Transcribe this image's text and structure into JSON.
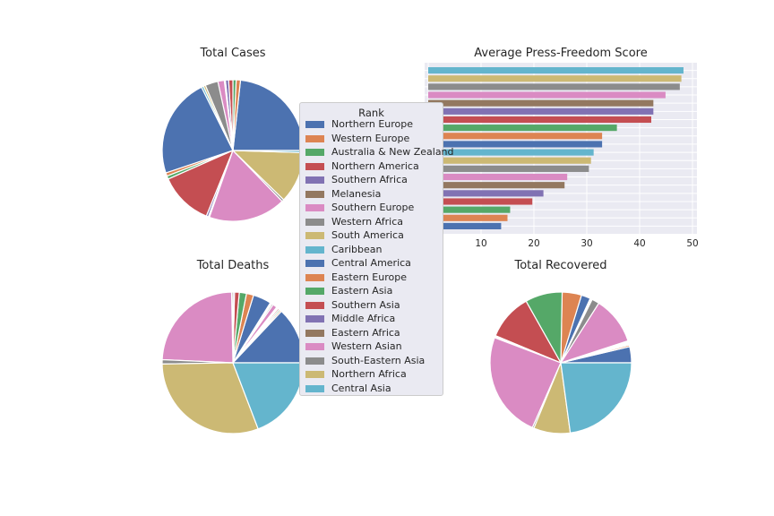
{
  "colors": [
    "#4c72b0",
    "#dd8452",
    "#55a868",
    "#c44e52",
    "#8172b3",
    "#937860",
    "#da8bc3",
    "#8c8c8c",
    "#ccb974",
    "#64b5cd"
  ],
  "chart_data": [
    {
      "type": "pie",
      "title": "Total Cases",
      "categories": [
        "Northern Europe",
        "Western Europe",
        "Australia & New Zealand",
        "Northern America",
        "Southern Africa",
        "Melanesia",
        "Southern Europe",
        "Western Africa",
        "South America",
        "Caribbean",
        "Central America",
        "Eastern Europe",
        "Eastern Asia",
        "Southern Asia",
        "Middle Africa",
        "Eastern Africa",
        "Western Asian",
        "South-Eastern Asia",
        "Northern Africa",
        "Central Asia"
      ],
      "values": [
        9.5,
        0.4,
        0.3,
        0.4,
        0.3,
        0.1,
        0.6,
        1.2,
        0.2,
        0.2,
        9.3,
        0.3,
        0.3,
        5.0,
        0.2,
        0.1,
        7.2,
        0.2,
        4.8,
        0.2
      ]
    },
    {
      "type": "bar",
      "orientation": "horizontal",
      "title": "Average Press-Freedom Score",
      "categories": [
        "Northern Europe",
        "Western Europe",
        "Australia & New Zealand",
        "Northern America",
        "Southern Africa",
        "Melanesia",
        "Southern Europe",
        "Western Africa",
        "South America",
        "Caribbean",
        "Central America",
        "Eastern Europe",
        "Eastern Asia",
        "Southern Asia",
        "Middle Africa",
        "Eastern Africa",
        "Western Asian",
        "South-Eastern Asia",
        "Northern Africa",
        "Central Asia"
      ],
      "values": [
        13.8,
        15.0,
        15.5,
        19.7,
        21.8,
        25.8,
        26.3,
        30.4,
        30.8,
        31.3,
        32.9,
        32.9,
        35.7,
        42.2,
        42.6,
        42.6,
        44.9,
        47.6,
        47.9,
        48.3
      ],
      "xlim": [
        0,
        50
      ],
      "xticks": [
        0,
        10,
        20,
        30,
        40,
        50
      ]
    },
    {
      "type": "pie",
      "title": "Total Deaths",
      "categories": [
        "Northern Europe",
        "Western Europe",
        "Australia & New Zealand",
        "Northern America",
        "Southern Africa",
        "Melanesia",
        "Southern Europe",
        "Western Africa",
        "South America",
        "Caribbean",
        "Central America",
        "Eastern Europe",
        "Eastern Asia",
        "Southern Asia",
        "Middle Africa",
        "Eastern Africa",
        "Western Asian",
        "South-Eastern Asia",
        "Northern Africa",
        "Central Asia"
      ],
      "values": [
        11.9,
        0.3,
        0.3,
        0.3,
        0.2,
        0.2,
        0.9,
        0.3,
        0.2,
        0.2,
        3.8,
        1.5,
        1.5,
        1.0,
        0.3,
        0.3,
        22.0,
        0.9,
        28.0,
        17.6
      ]
    },
    {
      "type": "pie",
      "title": "Total Recovered",
      "categories": [
        "Northern Europe",
        "Western Europe",
        "Australia & New Zealand",
        "Northern America",
        "Southern Africa",
        "Melanesia",
        "Southern Europe",
        "Western Africa",
        "South America",
        "Caribbean",
        "Central America",
        "Eastern Europe",
        "Eastern Asia",
        "Southern Asia",
        "Middle Africa",
        "Eastern Africa",
        "Western Asian",
        "South-Eastern Asia",
        "Northern Africa",
        "Central Asia"
      ],
      "values": [
        3.0,
        0.3,
        0.2,
        0.2,
        0.2,
        0.2,
        8.9,
        1.4,
        0.2,
        0.2,
        1.7,
        3.6,
        6.9,
        8.6,
        0.2,
        0.2,
        19.7,
        0.3,
        6.8,
        18.6
      ]
    }
  ],
  "legend": {
    "title": "Rank",
    "items": [
      "Northern Europe",
      "Western Europe",
      "Australia & New Zealand",
      "Northern America",
      "Southern Africa",
      "Melanesia",
      "Southern Europe",
      "Western Africa",
      "South America",
      "Caribbean",
      "Central America",
      "Eastern Europe",
      "Eastern Asia",
      "Southern Asia",
      "Middle Africa",
      "Eastern Africa",
      "Western Asian",
      "South-Eastern Asia",
      "Northern Africa",
      "Central Asia"
    ]
  }
}
